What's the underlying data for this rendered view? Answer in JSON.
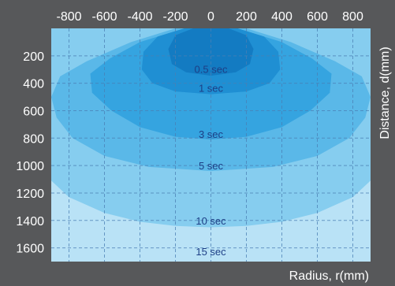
{
  "chart_data": {
    "type": "area",
    "xlabel": "Radius, r(mm)",
    "ylabel": "Distance, d(mm)",
    "xlim": [
      -900,
      900
    ],
    "ylim": [
      0,
      1700
    ],
    "y_inverted": true,
    "grid": true,
    "x_ticks": [
      -800,
      -600,
      -400,
      -200,
      0,
      200,
      400,
      600,
      800
    ],
    "y_ticks": [
      200,
      400,
      600,
      800,
      1000,
      1200,
      1400,
      1600
    ],
    "colors": {
      "background": "#57585a",
      "plot": "#eaf6fd",
      "grid": "#4a7fb4"
    },
    "series": [
      {
        "name": "15 sec",
        "color": "#b9e2f6",
        "boundary": [
          [
            -900,
            0
          ],
          [
            900,
            0
          ],
          [
            900,
            1700
          ],
          [
            -900,
            1700
          ]
        ]
      },
      {
        "name": "10 sec",
        "color": "#86cdef",
        "boundary": [
          [
            -900,
            0
          ],
          [
            900,
            0
          ],
          [
            900,
            1110
          ],
          [
            800,
            1230
          ],
          [
            600,
            1345
          ],
          [
            400,
            1410
          ],
          [
            200,
            1440
          ],
          [
            0,
            1450
          ],
          [
            -200,
            1440
          ],
          [
            -400,
            1410
          ],
          [
            -600,
            1345
          ],
          [
            -800,
            1230
          ],
          [
            -900,
            1110
          ]
        ]
      },
      {
        "name": "5 sec",
        "color": "#5ab8e8",
        "boundary": [
          [
            -200,
            0
          ],
          [
            200,
            0
          ],
          [
            450,
            100
          ],
          [
            700,
            240
          ],
          [
            850,
            350
          ],
          [
            900,
            500
          ],
          [
            870,
            650
          ],
          [
            780,
            800
          ],
          [
            600,
            930
          ],
          [
            350,
            1010
          ],
          [
            0,
            1040
          ],
          [
            -350,
            1010
          ],
          [
            -600,
            930
          ],
          [
            -780,
            800
          ],
          [
            -870,
            650
          ],
          [
            -900,
            500
          ],
          [
            -850,
            350
          ],
          [
            -700,
            240
          ],
          [
            -450,
            100
          ]
        ]
      },
      {
        "name": "3 sec",
        "color": "#35a4e0",
        "boundary": [
          [
            -150,
            0
          ],
          [
            150,
            0
          ],
          [
            400,
            100
          ],
          [
            570,
            220
          ],
          [
            680,
            330
          ],
          [
            670,
            470
          ],
          [
            560,
            600
          ],
          [
            400,
            720
          ],
          [
            200,
            790
          ],
          [
            0,
            810
          ],
          [
            -200,
            790
          ],
          [
            -400,
            720
          ],
          [
            -560,
            600
          ],
          [
            -670,
            470
          ],
          [
            -680,
            330
          ],
          [
            -570,
            220
          ],
          [
            -400,
            100
          ]
        ]
      },
      {
        "name": "1 sec",
        "color": "#1f8fd3",
        "boundary": [
          [
            -150,
            0
          ],
          [
            150,
            0
          ],
          [
            300,
            60
          ],
          [
            380,
            170
          ],
          [
            390,
            300
          ],
          [
            330,
            400
          ],
          [
            200,
            460
          ],
          [
            0,
            480
          ],
          [
            -200,
            460
          ],
          [
            -330,
            400
          ],
          [
            -390,
            300
          ],
          [
            -380,
            170
          ],
          [
            -300,
            60
          ]
        ]
      },
      {
        "name": "0.5 sec",
        "color": "#137bc2",
        "boundary": [
          [
            -100,
            0
          ],
          [
            100,
            0
          ],
          [
            200,
            50
          ],
          [
            240,
            150
          ],
          [
            220,
            260
          ],
          [
            140,
            320
          ],
          [
            0,
            345
          ],
          [
            -140,
            320
          ],
          [
            -220,
            260
          ],
          [
            -240,
            150
          ],
          [
            -200,
            50
          ]
        ]
      }
    ],
    "annotations": [
      {
        "text": "0.5 sec",
        "x": 0,
        "y": 295
      },
      {
        "text": "1 sec",
        "x": 0,
        "y": 435
      },
      {
        "text": "3 sec",
        "x": 0,
        "y": 770
      },
      {
        "text": "5 sec",
        "x": 0,
        "y": 1000
      },
      {
        "text": "10 sec",
        "x": 0,
        "y": 1400
      },
      {
        "text": "15 sec",
        "x": 0,
        "y": 1625
      }
    ]
  }
}
